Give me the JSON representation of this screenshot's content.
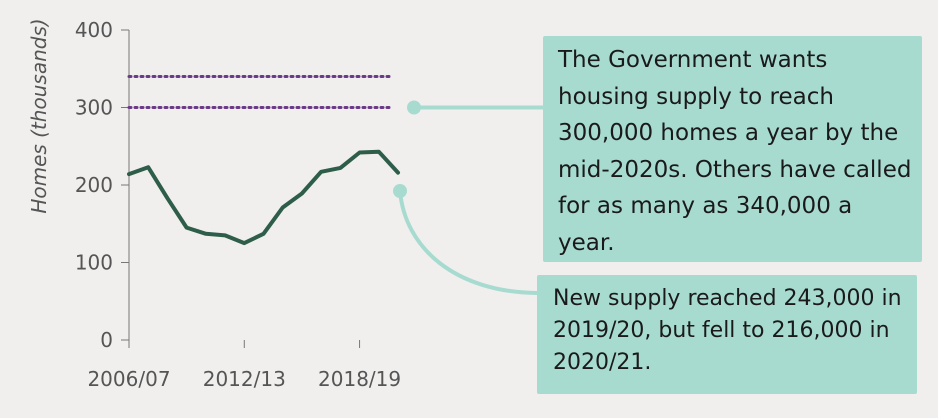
{
  "chart_data": {
    "type": "line",
    "ylabel": "Homes (thousands)",
    "ylim": [
      0,
      400
    ],
    "y_ticks": [
      "0",
      "100",
      "200",
      "300",
      "400"
    ],
    "x_tick_labels": [
      "2006/07",
      "2012/13",
      "2018/19"
    ],
    "grid": false,
    "series": [
      {
        "values": [
          214,
          223,
          183,
          145,
          137,
          135,
          125,
          137,
          171,
          189,
          217,
          222,
          242,
          243,
          216
        ],
        "color": "#2e5e4a"
      }
    ],
    "reference_lines": [
      {
        "value": 300,
        "color": "#6b3a87"
      },
      {
        "value": 340,
        "color": "#6b3a87"
      }
    ],
    "connector_color": "#a8dbd0"
  },
  "callouts": {
    "target": "The Government wants housing supply to reach 300,000 homes a year by the mid-2020s. Others have called for as many as 340,000 a year.",
    "supply": "New supply reached 243,000 in 2019/20, but fell to 216,000 in 2020/21."
  }
}
